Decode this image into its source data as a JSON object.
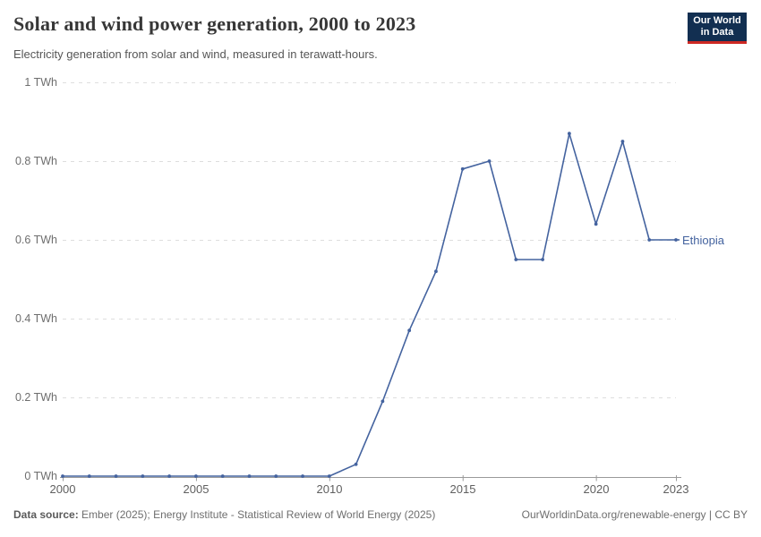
{
  "header": {
    "title": "Solar and wind power generation, 2000 to 2023",
    "subtitle": "Electricity generation from solar and wind, measured in terawatt-hours.",
    "logo": {
      "line1": "Our World",
      "line2": "in Data"
    }
  },
  "chart_data": {
    "type": "line",
    "title": "Solar and wind power generation, 2000 to 2023",
    "xlabel": "",
    "ylabel": "terawatt-hours",
    "x": [
      2000,
      2001,
      2002,
      2003,
      2004,
      2005,
      2006,
      2007,
      2008,
      2009,
      2010,
      2011,
      2012,
      2013,
      2014,
      2015,
      2016,
      2017,
      2018,
      2019,
      2020,
      2021,
      2022,
      2023
    ],
    "series": [
      {
        "name": "Ethiopia",
        "values": [
          0,
          0,
          0,
          0,
          0,
          0,
          0,
          0,
          0,
          0,
          0,
          0.03,
          0.19,
          0.37,
          0.52,
          0.78,
          0.8,
          0.55,
          0.55,
          0.87,
          0.64,
          0.85,
          0.6,
          0.6
        ]
      }
    ],
    "ylim": [
      0,
      1
    ],
    "xlim": [
      2000,
      2023
    ],
    "grid": true,
    "legend_position": "end-of-line-label",
    "yticks": [
      {
        "value": 0,
        "label": "0 TWh"
      },
      {
        "value": 0.2,
        "label": "0.2 TWh"
      },
      {
        "value": 0.4,
        "label": "0.4 TWh"
      },
      {
        "value": 0.6,
        "label": "0.6 TWh"
      },
      {
        "value": 0.8,
        "label": "0.8 TWh"
      },
      {
        "value": 1,
        "label": "1 TWh"
      }
    ],
    "xticks": [
      {
        "value": 2000,
        "label": "2000"
      },
      {
        "value": 2005,
        "label": "2005"
      },
      {
        "value": 2010,
        "label": "2010"
      },
      {
        "value": 2015,
        "label": "2015"
      },
      {
        "value": 2020,
        "label": "2020"
      },
      {
        "value": 2023,
        "label": "2023"
      }
    ],
    "line_color": "#44639f"
  },
  "footer": {
    "source_prefix": "Data source:",
    "source_text": " Ember (2025); Energy Institute - Statistical Review of World Energy (2025)",
    "link": "OurWorldinData.org/renewable-energy | CC BY"
  },
  "colors": {
    "line": "#44639f",
    "grid": "#dedede",
    "axis": "#9a9a9a",
    "title_text": "#373737",
    "subtitle_text": "#565656",
    "tick_text": "#6e6e6e",
    "logo_bg": "#122f51",
    "logo_accent": "#cd2823"
  }
}
